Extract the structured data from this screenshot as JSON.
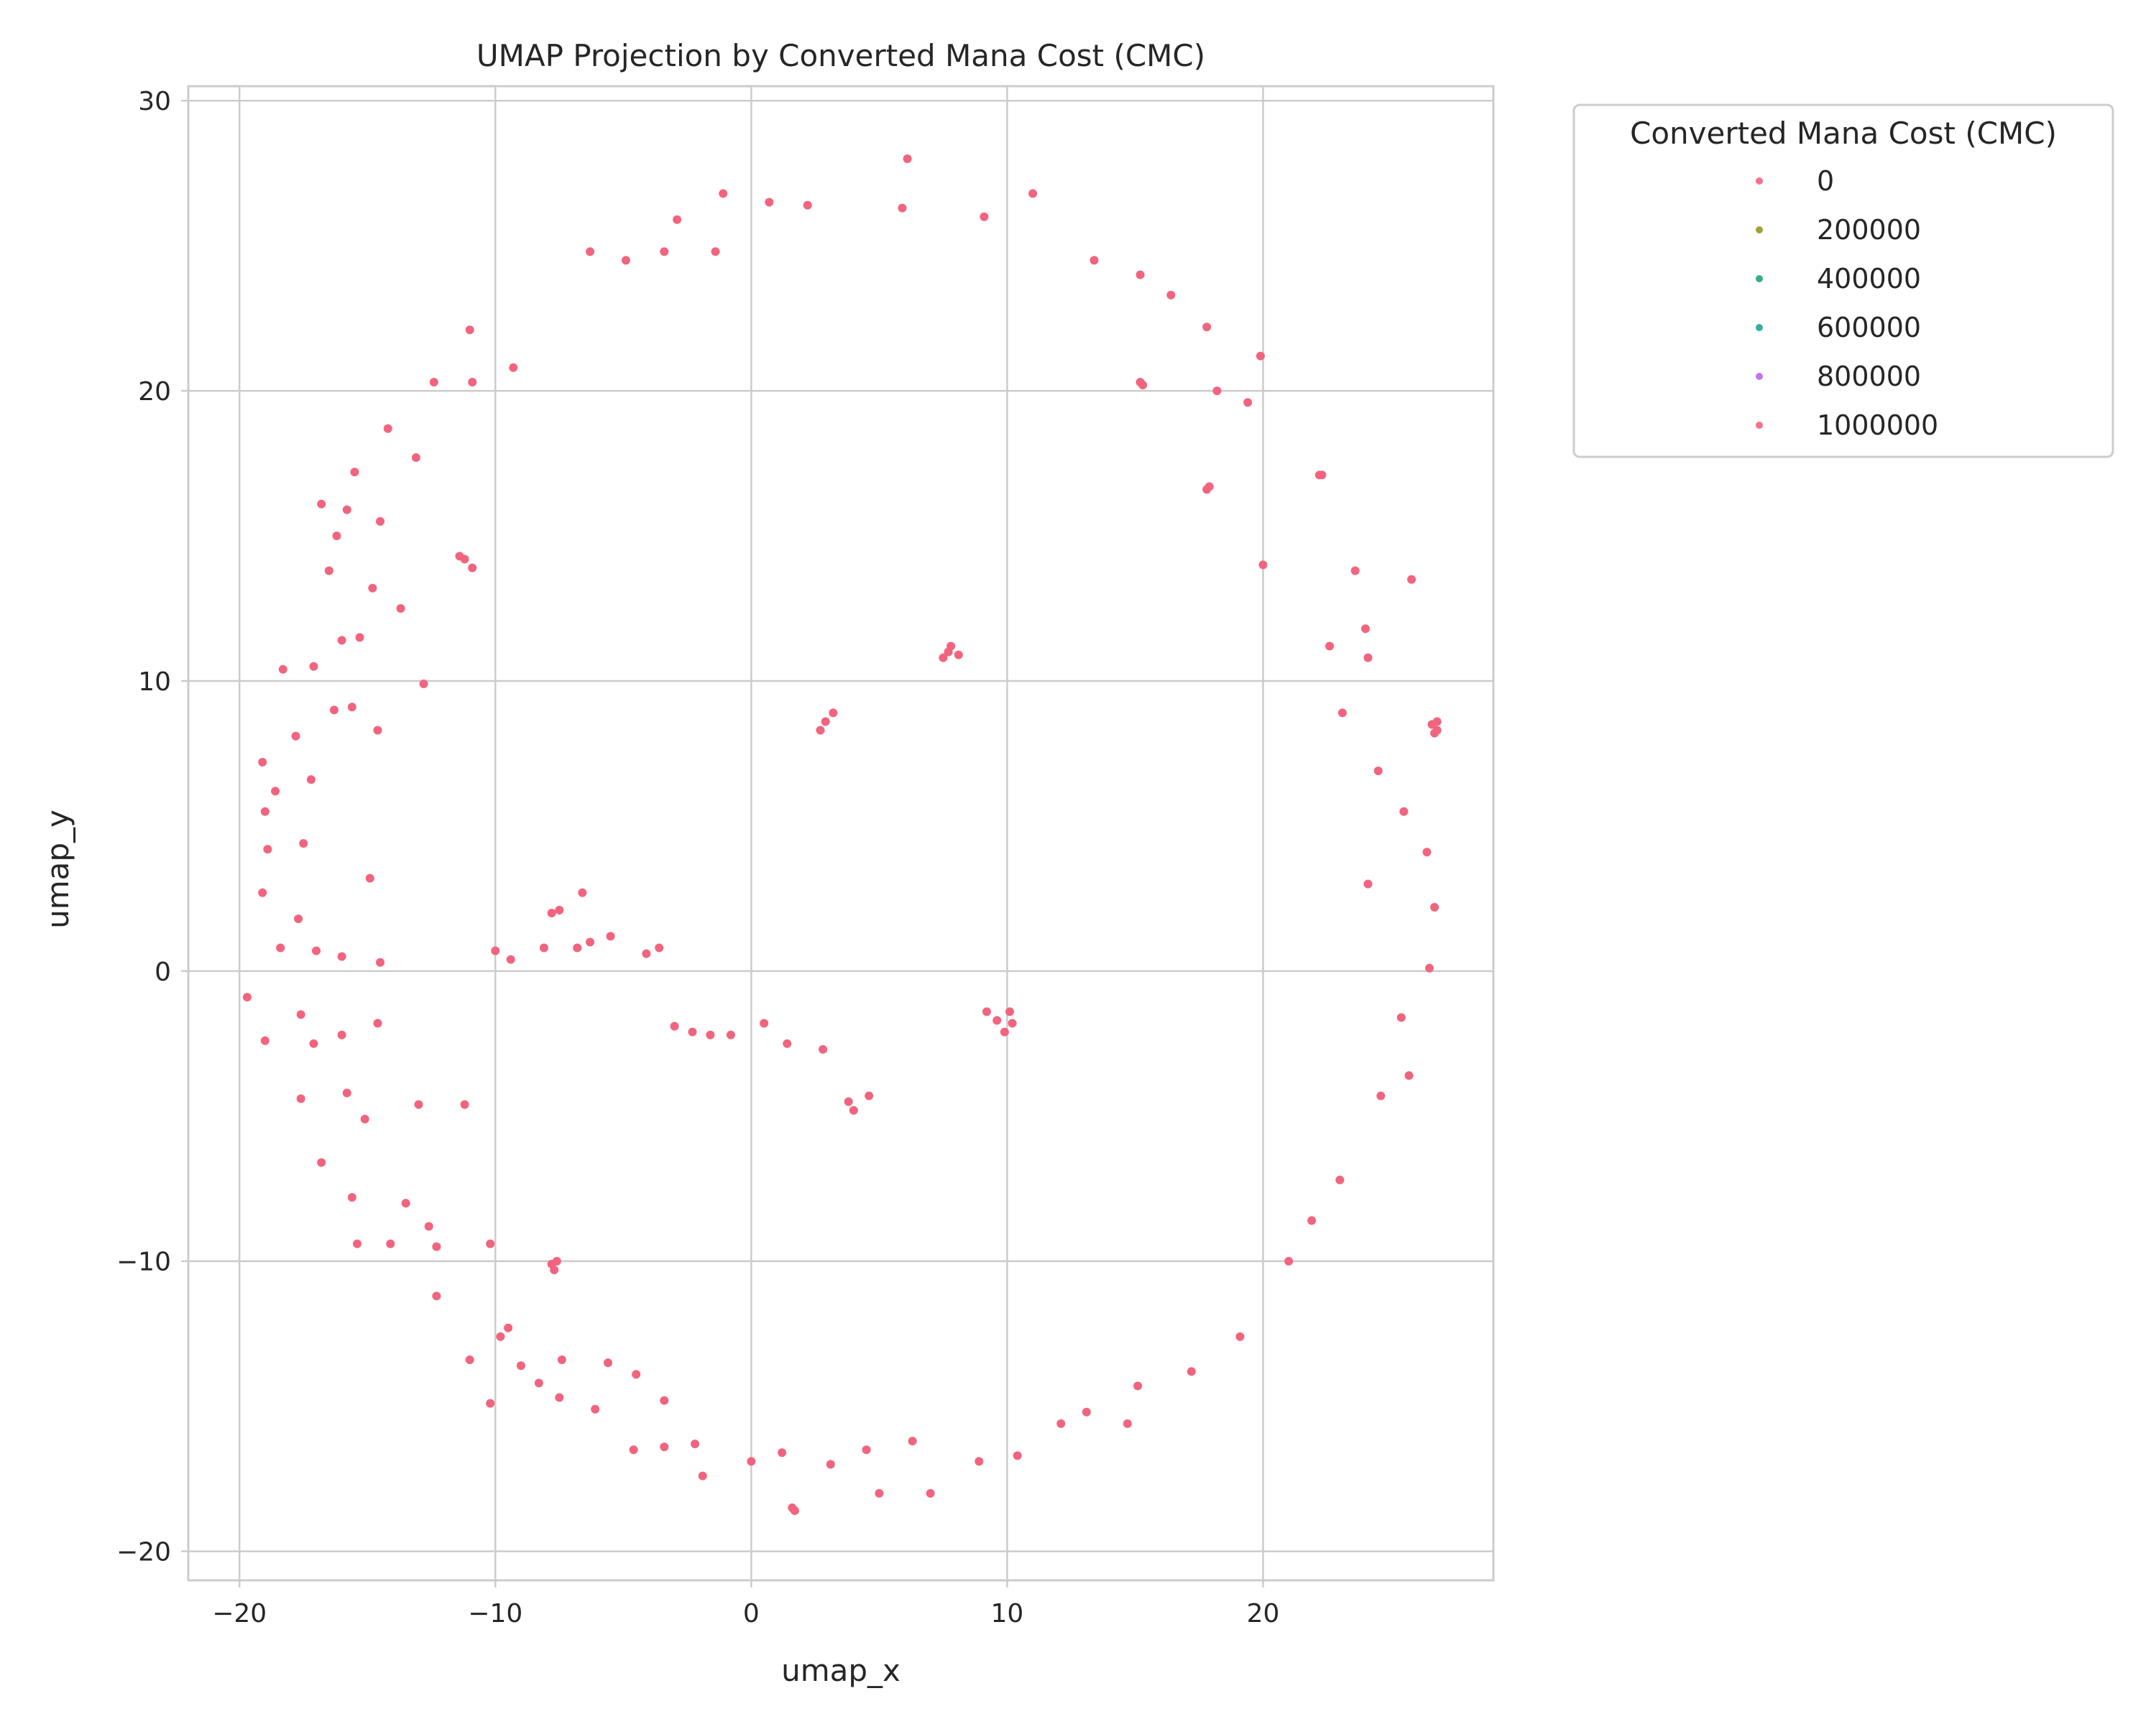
{
  "chart_data": {
    "type": "scatter",
    "title": "UMAP Projection by Converted Mana Cost (CMC)",
    "xlabel": "umap_x",
    "ylabel": "umap_y",
    "xlim": [
      -22,
      29
    ],
    "ylim": [
      -21,
      30.5
    ],
    "xticks": [
      -20,
      -10,
      0,
      10,
      20
    ],
    "yticks": [
      -20,
      -10,
      0,
      10,
      20,
      30
    ],
    "xtick_labels": [
      "−20",
      "−10",
      "0",
      "10",
      "20"
    ],
    "ytick_labels": [
      "−20",
      "−10",
      "0",
      "10",
      "20",
      "30"
    ],
    "grid": true,
    "legend": {
      "title": "Converted Mana Cost (CMC)",
      "placement": "outside-top-right",
      "entries": [
        {
          "label": "0",
          "color": "#f77189"
        },
        {
          "label": "200000",
          "color": "#a1a233"
        },
        {
          "label": "400000",
          "color": "#33b07a"
        },
        {
          "label": "600000",
          "color": "#36ada4"
        },
        {
          "label": "800000",
          "color": "#c174f3"
        },
        {
          "label": "1000000",
          "color": "#f77189"
        }
      ]
    },
    "point_color": "#f2647e",
    "series": [
      {
        "name": "0",
        "points": [
          [
            6.1,
            28.0
          ],
          [
            -1.1,
            26.8
          ],
          [
            0.7,
            26.5
          ],
          [
            2.2,
            26.4
          ],
          [
            5.9,
            26.3
          ],
          [
            -2.9,
            25.9
          ],
          [
            9.1,
            26.0
          ],
          [
            11.0,
            26.8
          ],
          [
            -6.3,
            24.8
          ],
          [
            -4.9,
            24.5
          ],
          [
            -3.4,
            24.8
          ],
          [
            -1.4,
            24.8
          ],
          [
            13.4,
            24.5
          ],
          [
            15.2,
            24.0
          ],
          [
            16.4,
            23.3
          ],
          [
            17.8,
            22.2
          ],
          [
            -11.0,
            22.1
          ],
          [
            19.9,
            21.2
          ],
          [
            -12.4,
            20.3
          ],
          [
            -10.9,
            20.3
          ],
          [
            -9.3,
            20.8
          ],
          [
            15.2,
            20.3
          ],
          [
            15.3,
            20.2
          ],
          [
            18.2,
            20.0
          ],
          [
            19.4,
            19.6
          ],
          [
            -14.2,
            18.7
          ],
          [
            -13.1,
            17.7
          ],
          [
            -15.5,
            17.2
          ],
          [
            -16.8,
            16.1
          ],
          [
            -15.8,
            15.9
          ],
          [
            17.8,
            16.6
          ],
          [
            17.9,
            16.7
          ],
          [
            22.2,
            17.1
          ],
          [
            22.3,
            17.1
          ],
          [
            -14.5,
            15.5
          ],
          [
            -16.2,
            15.0
          ],
          [
            -11.4,
            14.3
          ],
          [
            -11.2,
            14.2
          ],
          [
            -10.9,
            13.9
          ],
          [
            -16.5,
            13.8
          ],
          [
            -14.8,
            13.2
          ],
          [
            20.0,
            14.0
          ],
          [
            23.6,
            13.8
          ],
          [
            25.8,
            13.5
          ],
          [
            -13.7,
            12.5
          ],
          [
            -15.3,
            11.5
          ],
          [
            -16.0,
            11.4
          ],
          [
            24.0,
            11.8
          ],
          [
            -17.1,
            10.5
          ],
          [
            -18.3,
            10.4
          ],
          [
            -12.8,
            9.9
          ],
          [
            22.6,
            11.2
          ],
          [
            24.1,
            10.8
          ],
          [
            -15.6,
            9.1
          ],
          [
            -16.3,
            9.0
          ],
          [
            -17.8,
            8.1
          ],
          [
            -14.6,
            8.3
          ],
          [
            26.6,
            8.5
          ],
          [
            26.8,
            8.3
          ],
          [
            26.7,
            8.2
          ],
          [
            26.8,
            8.6
          ],
          [
            23.1,
            8.9
          ],
          [
            -19.1,
            7.2
          ],
          [
            -17.2,
            6.6
          ],
          [
            24.5,
            6.9
          ],
          [
            -18.6,
            6.2
          ],
          [
            -19.0,
            5.5
          ],
          [
            25.5,
            5.5
          ],
          [
            -17.5,
            4.4
          ],
          [
            -18.9,
            4.2
          ],
          [
            26.4,
            4.1
          ],
          [
            -14.9,
            3.2
          ],
          [
            24.1,
            3.0
          ],
          [
            -19.1,
            2.7
          ],
          [
            -17.7,
            1.8
          ],
          [
            26.7,
            2.2
          ],
          [
            -18.4,
            0.8
          ],
          [
            -17.0,
            0.7
          ],
          [
            -16.0,
            0.5
          ],
          [
            -14.5,
            0.3
          ],
          [
            26.5,
            0.1
          ],
          [
            -19.7,
            -0.9
          ],
          [
            -17.6,
            -1.5
          ],
          [
            -14.6,
            -1.8
          ],
          [
            25.4,
            -1.6
          ],
          [
            -19.0,
            -2.4
          ],
          [
            -17.1,
            -2.5
          ],
          [
            -16.0,
            -2.2
          ],
          [
            25.7,
            -3.6
          ],
          [
            -17.6,
            -4.4
          ],
          [
            -15.8,
            -4.2
          ],
          [
            -13.0,
            -4.6
          ],
          [
            -11.2,
            -4.6
          ],
          [
            24.6,
            -4.3
          ],
          [
            -15.1,
            -5.1
          ],
          [
            -16.8,
            -6.6
          ],
          [
            -15.6,
            -7.8
          ],
          [
            -13.5,
            -8.0
          ],
          [
            -12.6,
            -8.8
          ],
          [
            -15.4,
            -9.4
          ],
          [
            -14.1,
            -9.4
          ],
          [
            -12.3,
            -9.5
          ],
          [
            -10.2,
            -9.4
          ],
          [
            -7.8,
            -10.1
          ],
          [
            -7.6,
            -10.0
          ],
          [
            -7.7,
            -10.3
          ],
          [
            -12.3,
            -11.2
          ],
          [
            -9.8,
            -12.6
          ],
          [
            -9.5,
            -12.3
          ],
          [
            -11.0,
            -13.4
          ],
          [
            -9.0,
            -13.6
          ],
          [
            -7.4,
            -13.4
          ],
          [
            -10.2,
            -14.9
          ],
          [
            -5.6,
            -13.5
          ],
          [
            -4.5,
            -13.9
          ],
          [
            -8.3,
            -14.2
          ],
          [
            -7.5,
            -14.7
          ],
          [
            -6.1,
            -15.1
          ],
          [
            -3.4,
            -14.8
          ],
          [
            -4.6,
            -16.5
          ],
          [
            -3.4,
            -16.4
          ],
          [
            -2.2,
            -16.3
          ],
          [
            -1.9,
            -17.4
          ],
          [
            0.0,
            -16.9
          ],
          [
            1.2,
            -16.6
          ],
          [
            3.1,
            -17.0
          ],
          [
            5.0,
            -18.0
          ],
          [
            7.0,
            -18.0
          ],
          [
            1.7,
            -18.6
          ],
          [
            1.6,
            -18.5
          ],
          [
            4.5,
            -16.5
          ],
          [
            6.3,
            -16.2
          ],
          [
            8.9,
            -16.9
          ],
          [
            10.4,
            -16.7
          ],
          [
            12.1,
            -15.6
          ],
          [
            14.7,
            -15.6
          ],
          [
            13.1,
            -15.2
          ],
          [
            15.1,
            -14.3
          ],
          [
            17.2,
            -13.8
          ],
          [
            19.1,
            -12.6
          ],
          [
            21.0,
            -10.0
          ],
          [
            21.9,
            -8.6
          ],
          [
            23.0,
            -7.2
          ],
          [
            -4.1,
            0.6
          ],
          [
            -3.6,
            0.8
          ],
          [
            -5.5,
            1.2
          ],
          [
            -6.3,
            1.0
          ],
          [
            -6.8,
            0.8
          ],
          [
            -8.1,
            0.8
          ],
          [
            -9.4,
            0.4
          ],
          [
            -10.0,
            0.7
          ],
          [
            -6.6,
            2.7
          ],
          [
            -7.8,
            2.0
          ],
          [
            -7.5,
            2.1
          ],
          [
            -3.0,
            -1.9
          ],
          [
            -2.3,
            -2.1
          ],
          [
            -1.6,
            -2.2
          ],
          [
            -0.8,
            -2.2
          ],
          [
            0.5,
            -1.8
          ],
          [
            1.4,
            -2.5
          ],
          [
            2.8,
            -2.7
          ],
          [
            3.8,
            -4.5
          ],
          [
            4.0,
            -4.8
          ],
          [
            4.6,
            -4.3
          ],
          [
            9.2,
            -1.4
          ],
          [
            9.6,
            -1.7
          ],
          [
            10.1,
            -1.4
          ],
          [
            9.9,
            -2.1
          ],
          [
            10.2,
            -1.8
          ],
          [
            7.7,
            11.0
          ],
          [
            7.8,
            11.2
          ],
          [
            8.1,
            10.9
          ],
          [
            7.5,
            10.8
          ],
          [
            2.7,
            8.3
          ],
          [
            2.9,
            8.6
          ],
          [
            3.2,
            8.9
          ]
        ]
      }
    ]
  }
}
